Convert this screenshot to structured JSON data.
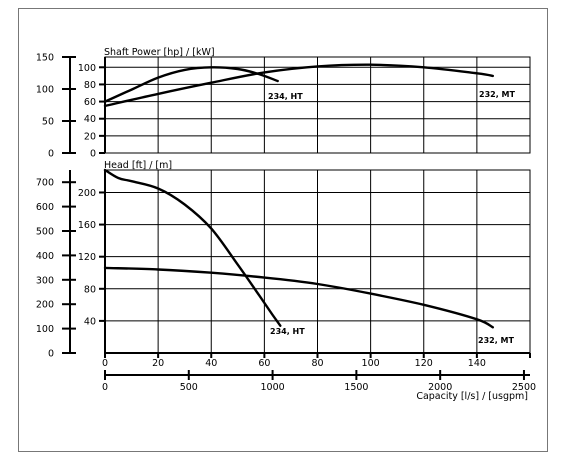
{
  "chart_data": [
    {
      "type": "line",
      "title": "Shaft Power [hp] / [kW]",
      "x_axis": {
        "label": "Capacity [l/s] / [usgpm]",
        "unit": "l/s",
        "range": [
          0,
          160
        ],
        "ticks": [
          0,
          20,
          40,
          60,
          80,
          100,
          120,
          140
        ]
      },
      "left_axis": {
        "unit": "hp",
        "range": [
          0,
          150
        ],
        "ticks": [
          0,
          50,
          100,
          150
        ]
      },
      "inner_axis": {
        "unit": "kW",
        "range": [
          0,
          112
        ],
        "ticks": [
          0,
          20,
          40,
          60,
          80,
          100
        ]
      },
      "grid": true,
      "series": [
        {
          "name": "234, HT",
          "unit": "kW",
          "x": [
            0,
            10,
            20,
            30,
            40,
            50,
            58,
            65
          ],
          "y": [
            60,
            74,
            88,
            97,
            100,
            98,
            92,
            84
          ]
        },
        {
          "name": "232, MT",
          "unit": "kW",
          "x": [
            0,
            20,
            40,
            60,
            80,
            100,
            120,
            140,
            146
          ],
          "y": [
            55,
            69,
            82,
            94,
            101,
            103,
            100,
            93,
            90
          ]
        }
      ]
    },
    {
      "type": "line",
      "title": "Head [ft] / [m]",
      "x_axis": {
        "label": "Capacity [l/s] / [usgpm]",
        "unit": "l/s",
        "range": [
          0,
          160
        ],
        "ticks": [
          0,
          20,
          40,
          60,
          80,
          100,
          120,
          140
        ]
      },
      "left_axis": {
        "unit": "ft",
        "range": [
          0,
          750
        ],
        "ticks": [
          0,
          100,
          200,
          300,
          400,
          500,
          600,
          700
        ]
      },
      "inner_axis": {
        "unit": "m",
        "range": [
          0,
          228
        ],
        "ticks": [
          40,
          80,
          120,
          160,
          200
        ]
      },
      "grid": true,
      "series": [
        {
          "name": "234, HT",
          "unit": "m",
          "x": [
            0,
            5,
            10,
            20,
            30,
            40,
            50,
            58,
            63,
            66
          ],
          "y": [
            228,
            218,
            214,
            205,
            185,
            155,
            110,
            72,
            48,
            34
          ]
        },
        {
          "name": "232, MT",
          "unit": "m",
          "x": [
            0,
            20,
            40,
            60,
            80,
            100,
            120,
            140,
            146
          ],
          "y": [
            106,
            104,
            100,
            94,
            86,
            74,
            60,
            42,
            32
          ]
        }
      ]
    }
  ],
  "bottom_axis": {
    "unit": "usgpm",
    "range": [
      0,
      2500
    ],
    "ticks": [
      0,
      500,
      1000,
      1500,
      2000,
      2500
    ]
  }
}
